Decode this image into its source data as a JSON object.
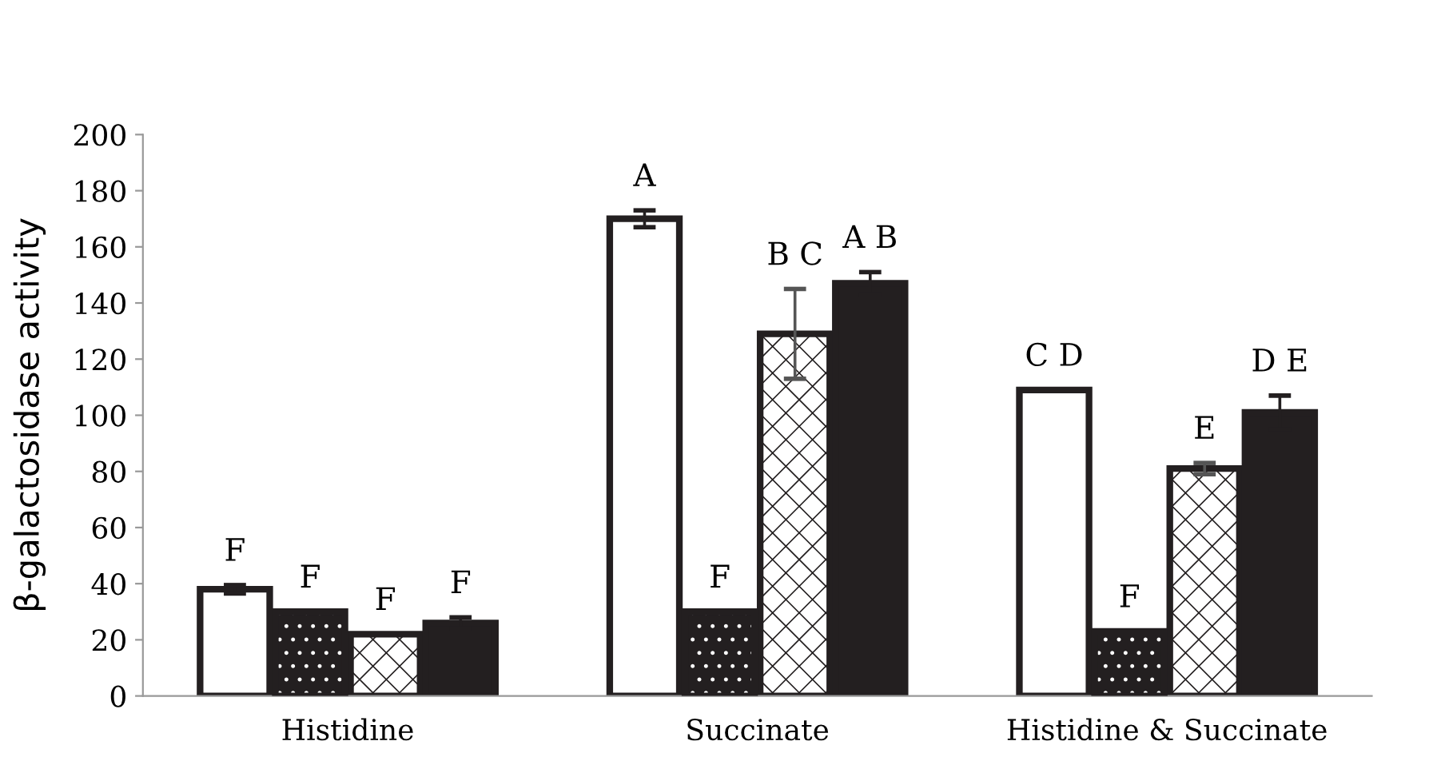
{
  "chart_data": {
    "type": "bar",
    "ylabel": "β-galactosidase activity",
    "categories": [
      "Histidine",
      "Succinate",
      "Histidine & Succinate"
    ],
    "series": [
      {
        "color": "#ffffff",
        "values": [
          38,
          170,
          109
        ],
        "errors": [
          1.5,
          3,
          null
        ]
      },
      {
        "color": "#231f20",
        "values": [
          30,
          30,
          23
        ],
        "errors": [
          null,
          null,
          null
        ]
      },
      {
        "color": "#231f20",
        "values": [
          22,
          129,
          81
        ],
        "errors": [
          null,
          16,
          2
        ]
      },
      {
        "color": "#231f20",
        "values": [
          26,
          147,
          101
        ],
        "errors": [
          2,
          4,
          6
        ]
      }
    ],
    "ylim": [
      0,
      200
    ],
    "yticks": [
      0,
      20,
      40,
      60,
      80,
      100,
      120,
      140,
      160,
      180,
      200
    ],
    "grid": false,
    "legend": false,
    "annotations": [
      "F",
      "F",
      "F",
      "F",
      "A",
      "F",
      "B C",
      "A B",
      "C D",
      "F",
      "E",
      "D E"
    ]
  }
}
